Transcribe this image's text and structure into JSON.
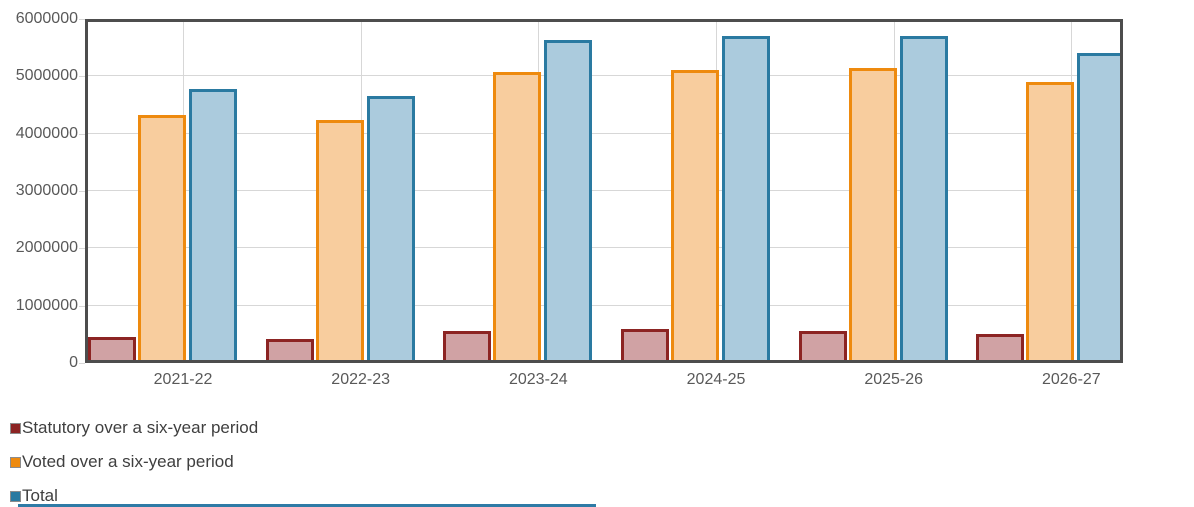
{
  "chart_data": {
    "type": "bar",
    "title": "",
    "categories": [
      "2021-22",
      "2022-23",
      "2023-24",
      "2024-25",
      "2025-26",
      "2026-27"
    ],
    "series": [
      {
        "key": "statutory",
        "name": "Statutory over a six-year period",
        "color": "#8c2423",
        "fill": "#d0a2a4",
        "values": [
          450000,
          420000,
          560000,
          590000,
          560000,
          500000
        ]
      },
      {
        "key": "voted",
        "name": "Voted over a six-year period",
        "color": "#ee8a0e",
        "fill": "#f8cd9e",
        "values": [
          4330000,
          4230000,
          5080000,
          5110000,
          5150000,
          4910000
        ]
      },
      {
        "key": "total",
        "name": "Total",
        "color": "#2a7aa1",
        "fill": "#abcbdd",
        "values": [
          4780000,
          4650000,
          5640000,
          5700000,
          5710000,
          5410000
        ]
      }
    ],
    "ylim": [
      0,
      6000000
    ],
    "ytick_step": 1000000,
    "ytick_labels": [
      "0",
      "1000000",
      "2000000",
      "3000000",
      "4000000",
      "5000000",
      "6000000"
    ],
    "grid": true,
    "legend_position": "bottom-left",
    "colors": {
      "axis_border": "#4d4d4d",
      "gridline": "#d7d7d7",
      "tick_text": "#595959",
      "legend_text": "#3f3f3f"
    }
  },
  "misc": {
    "bottom_strip_color": "#2e7ba6"
  }
}
